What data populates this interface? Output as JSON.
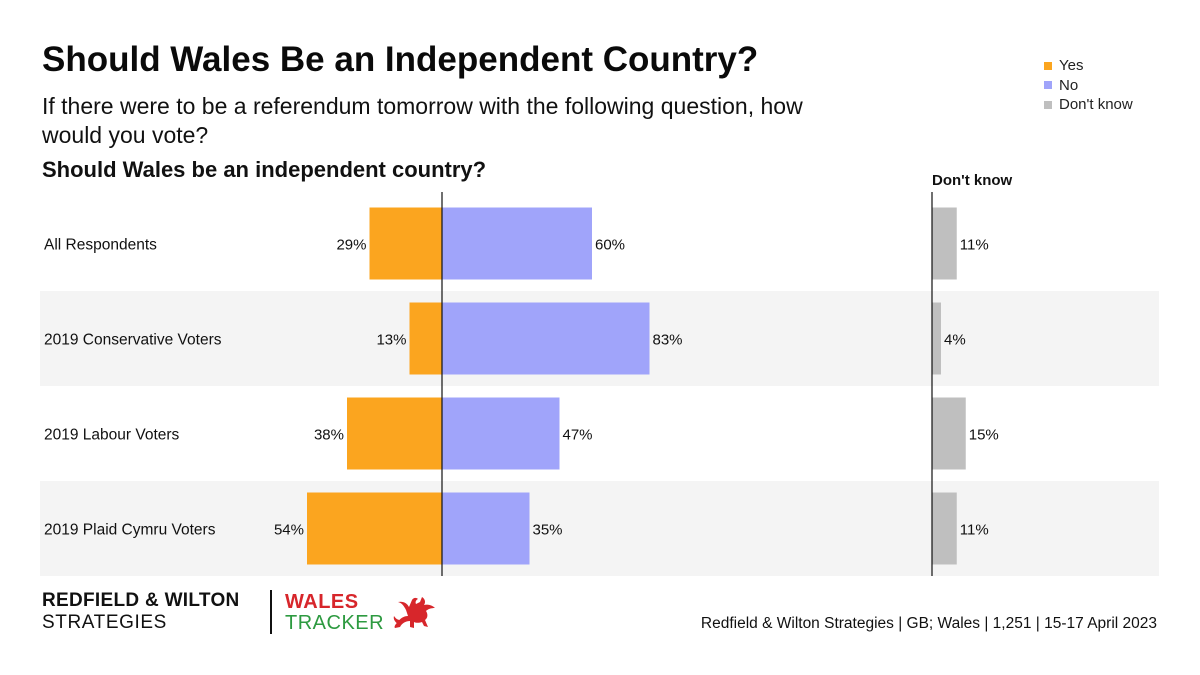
{
  "header": {
    "title": "Should Wales Be an Independent Country?",
    "subtitle": "If there were to be a referendum tomorrow with the following question, how would you vote?",
    "question": "Should Wales be an independent country?"
  },
  "legend": {
    "items": [
      {
        "label": "Yes",
        "color": "#FBA51F"
      },
      {
        "label": "No",
        "color": "#A0A4FA"
      },
      {
        "label": "Don't know",
        "color": "#BFBFBF"
      }
    ]
  },
  "dont_know_header": "Don't know",
  "chart_data": {
    "type": "bar",
    "orientation": "horizontal-diverging",
    "categories": [
      "All Respondents",
      "2019 Conservative Voters",
      "2019 Labour Voters",
      "2019 Plaid Cymru Voters"
    ],
    "series": [
      {
        "name": "Yes",
        "values": [
          29,
          13,
          38,
          54
        ],
        "labels": [
          "29%",
          "13%",
          "38%",
          "54%"
        ],
        "color": "#FBA51F"
      },
      {
        "name": "No",
        "values": [
          60,
          83,
          47,
          35
        ],
        "labels": [
          "60%",
          "83%",
          "47%",
          "35%"
        ],
        "color": "#A0A4FA"
      },
      {
        "name": "Don't know",
        "values": [
          11,
          4,
          15,
          11
        ],
        "labels": [
          "11%",
          "4%",
          "15%",
          "11%"
        ],
        "color": "#BFBFBF"
      }
    ],
    "unit": "%",
    "legend_position": "top-right",
    "row_banding": true
  },
  "footer": {
    "logo_line1": "REDFIELD & WILTON",
    "logo_line2": "STRATEGIES",
    "tracker_line1": "WALES",
    "tracker_line2": "TRACKER",
    "source": "Redfield & Wilton Strategies | GB; Wales | 1,251 | 15-17 April 2023"
  },
  "icons": {
    "dragon": "welsh-dragon-icon"
  }
}
